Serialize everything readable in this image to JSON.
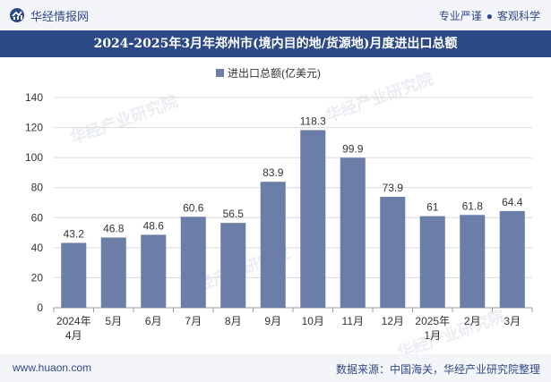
{
  "header": {
    "brand": "华经情报网",
    "tag1": "专业严谨",
    "dot": "●",
    "tag2": "客观科学"
  },
  "title": "2024-2025年3月年郑州市(境内目的地/货源地)月度进出口总额",
  "watermark": "华经产业研究院",
  "footer": {
    "website": "www.huaon.com",
    "source": "数据来源：中国海关，华经产业研究院整理"
  },
  "colors": {
    "bar": "#6b7ea8",
    "header": "#2d4a86",
    "grid": "#d9d9d9"
  },
  "chart_data": {
    "type": "bar",
    "title": "2024-2025年3月年郑州市(境内目的地/货源地)月度进出口总额",
    "legend": "进出口总额(亿美元)",
    "legend_position": "top-center",
    "categories": [
      "2024年\n4月",
      "5月",
      "6月",
      "7月",
      "8月",
      "9月",
      "10月",
      "11月",
      "12月",
      "2025年\n1月",
      "2月",
      "3月"
    ],
    "values": [
      43.2,
      46.8,
      48.6,
      60.6,
      56.5,
      83.9,
      118.3,
      99.9,
      73.9,
      61,
      61.8,
      64.4
    ],
    "labels": [
      "43.2",
      "46.8",
      "48.6",
      "60.6",
      "56.5",
      "83.9",
      "118.3",
      "99.9",
      "73.9",
      "61",
      "61.8",
      "64.4"
    ],
    "ylim": [
      0,
      140
    ],
    "yticks": [
      0,
      20,
      40,
      60,
      80,
      100,
      120,
      140
    ],
    "xlabel": "",
    "ylabel": ""
  }
}
